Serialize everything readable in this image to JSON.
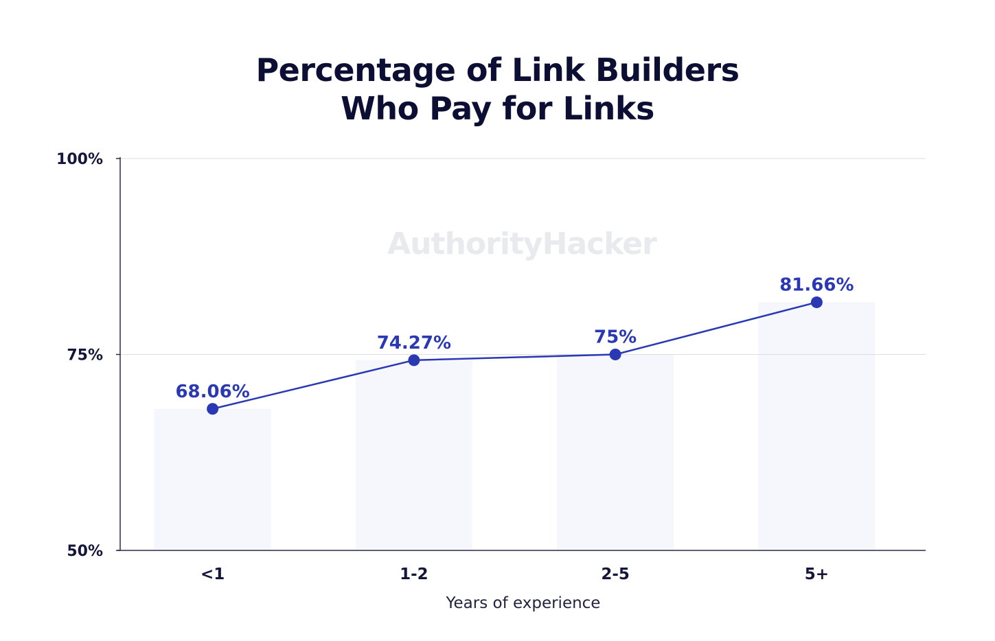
{
  "title_lines": [
    "Percentage of Link Builders",
    "Who Pay for Links"
  ],
  "watermark": "AuthorityHacker",
  "chart_data": {
    "type": "line",
    "title": "Percentage of Link Builders Who Pay for Links",
    "xlabel": "Years of experience",
    "ylabel": "",
    "categories": [
      "<1",
      "1-2",
      "2-5",
      "5+"
    ],
    "values": [
      68.06,
      74.27,
      75,
      81.66
    ],
    "data_labels": [
      "68.06%",
      "74.27%",
      "75%",
      "81.66%"
    ],
    "ylim": [
      50,
      100
    ],
    "y_ticks": [
      50,
      75,
      100
    ],
    "y_tick_labels": [
      "50%",
      "75%",
      "100%"
    ],
    "background_bars": true,
    "grid": true,
    "colors": {
      "line": "#2a38b4",
      "bar": "#f5f7fc",
      "grid": "#dcdde3",
      "axis": "#2a2b45",
      "text": "#14163a"
    }
  }
}
